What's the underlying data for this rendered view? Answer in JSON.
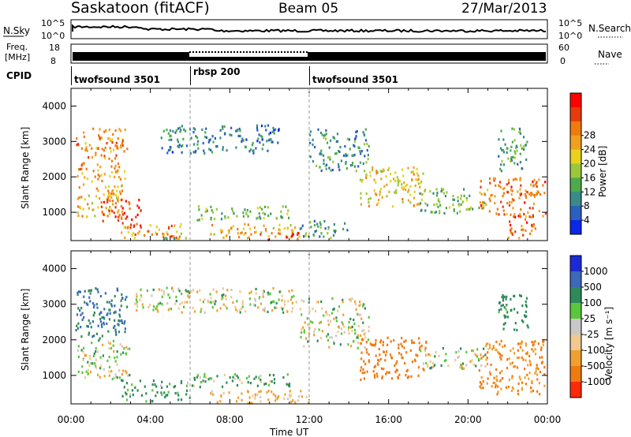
{
  "header": {
    "station": "Saskatoon (fitACF)",
    "beam": "Beam 05",
    "date": "27/Mar/2013"
  },
  "labels": {
    "nsky": "N.Sky",
    "nsearch": "N.Search",
    "freq_line1": "Freq.",
    "freq_line2": "[MHz]",
    "nave": "Nave",
    "cpid": "CPID",
    "nsky_tick_top": "10^5",
    "nsky_tick_bottom": "10^0",
    "nsearch_tick_top": "10^5",
    "nsearch_tick_bottom": "10^0",
    "freq_tick_top": "18",
    "freq_tick_bottom": "8",
    "nave_tick_top": "60",
    "nave_tick_bottom": "0"
  },
  "cpid_segments": [
    {
      "label": "twofsound 3501",
      "start_hour": 0,
      "end_hour": 6
    },
    {
      "label": "rbsp 200",
      "start_hour": 6,
      "end_hour": 12
    },
    {
      "label": "twofsound 3501",
      "start_hour": 12,
      "end_hour": 24
    }
  ],
  "chart_data": [
    {
      "type": "heatmap",
      "name": "power",
      "ylabel": "Slant Range [km]",
      "xlim": [
        0,
        24
      ],
      "ylim": [
        200,
        4500
      ],
      "yticks": [
        "1000",
        "2000",
        "3000",
        "4000"
      ],
      "colorbar": {
        "label": "Power [dB]",
        "ticks": [
          "4",
          "8",
          "12",
          "16",
          "20",
          "24",
          "28"
        ],
        "colors": [
          "#0a28e6",
          "#2b5fc0",
          "#3a8a8a",
          "#4caa4c",
          "#9ac83a",
          "#e8d21e",
          "#f0a020",
          "#f07a10",
          "#e83a0a",
          "#ff0000"
        ]
      },
      "blobs": [
        {
          "t0": 0.2,
          "t1": 2.8,
          "r0": 1900,
          "r1": 3400,
          "val": 22
        },
        {
          "t0": 0.3,
          "t1": 2.6,
          "r0": 900,
          "r1": 1900,
          "val": 20
        },
        {
          "t0": 1.5,
          "t1": 3.5,
          "r0": 600,
          "r1": 1400,
          "val": 27
        },
        {
          "t0": 2.5,
          "t1": 5.5,
          "r0": 300,
          "r1": 700,
          "val": 22
        },
        {
          "t0": 4.5,
          "t1": 6.0,
          "r0": 250,
          "r1": 500,
          "val": 14
        },
        {
          "t0": 4.5,
          "t1": 10.5,
          "r0": 2700,
          "r1": 3500,
          "val": 7
        },
        {
          "t0": 6.0,
          "t1": 11.0,
          "r0": 800,
          "r1": 1200,
          "val": 12
        },
        {
          "t0": 7.0,
          "t1": 11.5,
          "r0": 300,
          "r1": 700,
          "val": 20
        },
        {
          "t0": 9.5,
          "t1": 11.5,
          "r0": 200,
          "r1": 450,
          "val": 28
        },
        {
          "t0": 11.5,
          "t1": 14.0,
          "r0": 300,
          "r1": 800,
          "val": 10
        },
        {
          "t0": 12.0,
          "t1": 15.0,
          "r0": 2200,
          "r1": 3400,
          "val": 9
        },
        {
          "t0": 14.5,
          "t1": 17.8,
          "r0": 1200,
          "r1": 2300,
          "val": 18
        },
        {
          "t0": 17.5,
          "t1": 21.0,
          "r0": 1000,
          "r1": 1700,
          "val": 12
        },
        {
          "t0": 20.5,
          "t1": 24.0,
          "r0": 900,
          "r1": 2000,
          "val": 24
        },
        {
          "t0": 21.5,
          "t1": 23.0,
          "r0": 2200,
          "r1": 3400,
          "val": 10
        },
        {
          "t0": 22.0,
          "t1": 23.5,
          "r0": 300,
          "r1": 1000,
          "val": 25
        }
      ]
    },
    {
      "type": "heatmap",
      "name": "velocity",
      "ylabel": "Slant Range [km]",
      "xlabel": "Time UT",
      "xlim": [
        0,
        24
      ],
      "ylim": [
        200,
        4500
      ],
      "xticks": [
        "00:00",
        "04:00",
        "08:00",
        "12:00",
        "16:00",
        "20:00",
        "00:00"
      ],
      "yticks": [
        "1000",
        "2000",
        "3000",
        "4000"
      ],
      "colorbar": {
        "label": "Velocity [m s⁻¹]",
        "ticks": [
          "1000",
          "500",
          "100",
          "25",
          "-25",
          "-100",
          "-500",
          "-1000"
        ],
        "colors": [
          "#1a2ad8",
          "#3a6ab8",
          "#2e8a5a",
          "#5ac83c",
          "#c8c8c8",
          "#f0c890",
          "#f0a030",
          "#f07a10",
          "#ff2a0a"
        ]
      },
      "blobs": [
        {
          "t0": 0.2,
          "t1": 2.8,
          "r0": 2000,
          "r1": 3500,
          "val": 300
        },
        {
          "t0": 0.3,
          "t1": 3.0,
          "r0": 900,
          "r1": 2000,
          "val": 0
        },
        {
          "t0": 2.5,
          "t1": 6.0,
          "r0": 300,
          "r1": 900,
          "val": 100
        },
        {
          "t0": 3.0,
          "t1": 11.5,
          "r0": 2800,
          "r1": 3500,
          "val": 0
        },
        {
          "t0": 6.0,
          "t1": 11.0,
          "r0": 700,
          "r1": 1100,
          "val": 60
        },
        {
          "t0": 7.0,
          "t1": 12.0,
          "r0": 250,
          "r1": 600,
          "val": -100
        },
        {
          "t0": 11.5,
          "t1": 15.0,
          "r0": 1800,
          "r1": 3200,
          "val": 0
        },
        {
          "t0": 14.5,
          "t1": 18.0,
          "r0": 900,
          "r1": 2100,
          "val": -400
        },
        {
          "t0": 17.5,
          "t1": 21.0,
          "r0": 1200,
          "r1": 1800,
          "val": 0
        },
        {
          "t0": 20.5,
          "t1": 24.0,
          "r0": 500,
          "r1": 2000,
          "val": -300
        },
        {
          "t0": 21.5,
          "t1": 23.0,
          "r0": 2300,
          "r1": 3300,
          "val": 150
        }
      ]
    }
  ]
}
